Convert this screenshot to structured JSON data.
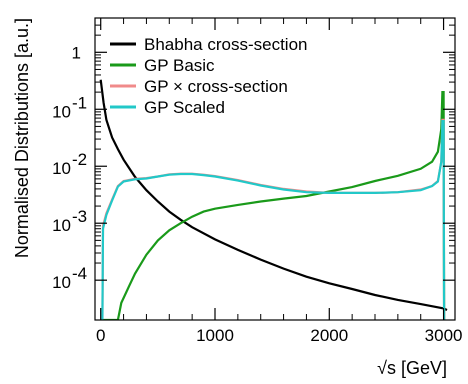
{
  "chart_data": {
    "type": "line",
    "title": "",
    "xlabel": "√s [GeV]",
    "ylabel": "Normalised Distributions [a.u.]",
    "xlim": [
      -50,
      3100
    ],
    "ylim": [
      2e-05,
      4
    ],
    "y_scale": "log",
    "x_ticks": [
      0,
      1000,
      2000,
      3000
    ],
    "x_tick_labels": [
      "0",
      "1000",
      "2000",
      "3000"
    ],
    "y_ticks": [
      0.0001,
      0.001,
      0.01,
      0.1,
      1
    ],
    "y_tick_labels": [
      {
        "base": "10",
        "exp": "-4"
      },
      {
        "base": "10",
        "exp": "-3"
      },
      {
        "base": "10",
        "exp": "-2"
      },
      {
        "base": "10",
        "exp": "-1"
      },
      {
        "base": "1",
        "exp": ""
      }
    ],
    "grid": false,
    "legend_position": "top-left",
    "series": [
      {
        "name": "Bhabha cross-section",
        "color": "#000000",
        "points": [
          [
            0,
            0.33
          ],
          [
            25,
            0.13
          ],
          [
            50,
            0.065
          ],
          [
            100,
            0.032
          ],
          [
            150,
            0.02
          ],
          [
            200,
            0.013
          ],
          [
            300,
            0.0065
          ],
          [
            400,
            0.0038
          ],
          [
            500,
            0.0024
          ],
          [
            600,
            0.0016
          ],
          [
            700,
            0.00115
          ],
          [
            800,
            0.00085
          ],
          [
            1000,
            0.00052
          ],
          [
            1200,
            0.00034
          ],
          [
            1400,
            0.00023
          ],
          [
            1600,
            0.00016
          ],
          [
            1800,
            0.000115
          ],
          [
            2000,
            8.8e-05
          ],
          [
            2200,
            7e-05
          ],
          [
            2400,
            5.5e-05
          ],
          [
            2600,
            4.5e-05
          ],
          [
            2800,
            3.8e-05
          ],
          [
            3000,
            3.2e-05
          ],
          [
            3030,
            3e-05
          ]
        ]
      },
      {
        "name": "GP Basic",
        "color": "#1a9a1a",
        "points": [
          [
            0,
            2e-05
          ],
          [
            150,
            2e-05
          ],
          [
            180,
            4e-05
          ],
          [
            250,
            8e-05
          ],
          [
            300,
            0.00013
          ],
          [
            400,
            0.00028
          ],
          [
            500,
            0.0005
          ],
          [
            600,
            0.00075
          ],
          [
            700,
            0.001
          ],
          [
            800,
            0.0013
          ],
          [
            900,
            0.0016
          ],
          [
            1000,
            0.0018
          ],
          [
            1200,
            0.0021
          ],
          [
            1400,
            0.0024
          ],
          [
            1600,
            0.0027
          ],
          [
            1800,
            0.003
          ],
          [
            2000,
            0.0036
          ],
          [
            2200,
            0.0043
          ],
          [
            2400,
            0.0055
          ],
          [
            2600,
            0.0068
          ],
          [
            2800,
            0.009
          ],
          [
            2900,
            0.012
          ],
          [
            2950,
            0.018
          ],
          [
            2980,
            0.045
          ],
          [
            2990,
            0.2
          ],
          [
            3000,
            0.2
          ],
          [
            3005,
            2e-05
          ]
        ]
      },
      {
        "name": "GP × cross-section",
        "color": "#f08a8a",
        "points": [
          [
            0,
            2e-05
          ],
          [
            15,
            2e-05
          ],
          [
            20,
            0.0009
          ],
          [
            50,
            0.0015
          ],
          [
            100,
            0.0026
          ],
          [
            150,
            0.0045
          ],
          [
            200,
            0.0055
          ],
          [
            300,
            0.006
          ],
          [
            400,
            0.0062
          ],
          [
            500,
            0.0066
          ],
          [
            600,
            0.0072
          ],
          [
            700,
            0.0074
          ],
          [
            800,
            0.0074
          ],
          [
            900,
            0.0071
          ],
          [
            1000,
            0.0067
          ],
          [
            1200,
            0.0057
          ],
          [
            1400,
            0.0047
          ],
          [
            1600,
            0.004
          ],
          [
            1800,
            0.0036
          ],
          [
            2000,
            0.0034
          ],
          [
            2200,
            0.0034
          ],
          [
            2400,
            0.0034
          ],
          [
            2600,
            0.0035
          ],
          [
            2800,
            0.0039
          ],
          [
            2900,
            0.0045
          ],
          [
            2950,
            0.0055
          ],
          [
            2980,
            0.012
          ],
          [
            2990,
            0.065
          ],
          [
            3000,
            0.065
          ],
          [
            3005,
            2e-05
          ]
        ]
      },
      {
        "name": "GP Scaled",
        "color": "#22c8c8",
        "points": [
          [
            0,
            2e-05
          ],
          [
            15,
            2e-05
          ],
          [
            20,
            0.0008
          ],
          [
            50,
            0.0014
          ],
          [
            100,
            0.0025
          ],
          [
            150,
            0.0044
          ],
          [
            200,
            0.0054
          ],
          [
            300,
            0.0059
          ],
          [
            400,
            0.0061
          ],
          [
            500,
            0.0066
          ],
          [
            600,
            0.0071
          ],
          [
            700,
            0.0073
          ],
          [
            800,
            0.0073
          ],
          [
            900,
            0.007
          ],
          [
            1000,
            0.0066
          ],
          [
            1200,
            0.0056
          ],
          [
            1400,
            0.0046
          ],
          [
            1600,
            0.0039
          ],
          [
            1800,
            0.0035
          ],
          [
            2000,
            0.0034
          ],
          [
            2200,
            0.0034
          ],
          [
            2400,
            0.0034
          ],
          [
            2600,
            0.0035
          ],
          [
            2800,
            0.0038
          ],
          [
            2900,
            0.0045
          ],
          [
            2950,
            0.0054
          ],
          [
            2980,
            0.012
          ],
          [
            2990,
            0.062
          ],
          [
            3000,
            0.062
          ],
          [
            3005,
            2e-05
          ]
        ]
      }
    ]
  }
}
